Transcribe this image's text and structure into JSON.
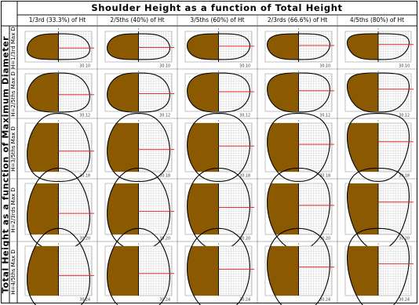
{
  "header": {
    "title": "Shoulder Height as a function of Total Height"
  },
  "side_title": "Total Height as a function of Maximum Diameter",
  "columns": [
    "1/3rd (33.3%) of Ht",
    "2/5ths (40%) of Ht",
    "3/5ths (60%) of Ht",
    "2/3rds (66.6%) of Ht",
    "4/5ths (80%) of Ht"
  ],
  "rows": [
    {
      "label": "H=1/3rd Max D",
      "cells": [
        "30.10",
        "30.10",
        "30.10",
        "30.10",
        "30.10"
      ]
    },
    {
      "label": "H=2/5ths Max D",
      "cells": [
        "30.12",
        "30.12",
        "30.12",
        "30.12",
        "30.12"
      ]
    },
    {
      "label": "H=3/5ths Max D",
      "cells": [
        "30.18",
        "30.18",
        "30.18",
        "30.18",
        "30.18"
      ]
    },
    {
      "label": "H=2/3rds Max D",
      "cells": [
        "30.20",
        "30.20",
        "30.20",
        "30.20",
        "30.20"
      ]
    },
    {
      "label": "H=4/5ths Max D",
      "cells": [
        "30.24",
        "30.24",
        "30.24",
        "30.24",
        "30.24"
      ]
    }
  ],
  "colors": {
    "fill": "#8b5a00",
    "shoulder_line": "#e03030",
    "outline": "#000000",
    "grid": "#c8c8c8",
    "frame": "#111111"
  }
}
